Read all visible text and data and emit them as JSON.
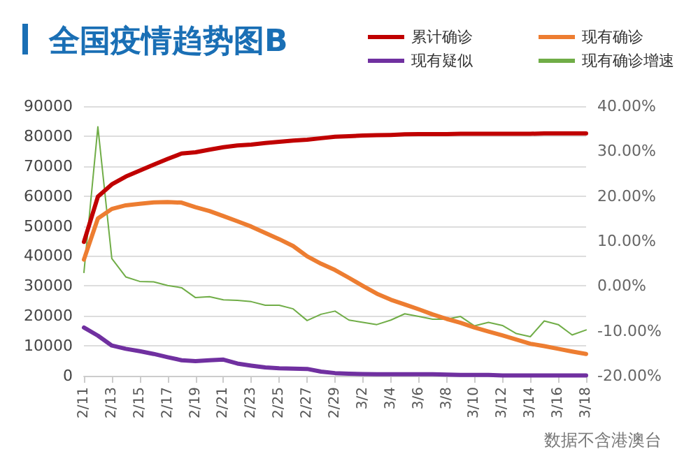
{
  "chart_data": {
    "type": "line",
    "title": "全国疫情趋势图B",
    "categories": [
      "2/11",
      null,
      "2/13",
      null,
      "2/15",
      null,
      "2/17",
      null,
      "2/19",
      null,
      "2/21",
      null,
      "2/23",
      null,
      "2/25",
      null,
      "2/27",
      null,
      "2/29",
      null,
      "3/2",
      null,
      "3/4",
      null,
      "3/6",
      null,
      "3/8",
      null,
      "3/10",
      null,
      "3/12",
      null,
      "3/14",
      null,
      "3/16",
      null,
      "3/18"
    ],
    "series": [
      {
        "name": "累计确诊",
        "color": "#c00000",
        "values": [
          44700,
          59800,
          63900,
          66500,
          68500,
          70500,
          72400,
          74200,
          74600,
          75500,
          76300,
          76900,
          77200,
          77700,
          78100,
          78500,
          78800,
          79300,
          79800,
          80000,
          80200,
          80300,
          80400,
          80600,
          80700,
          80700,
          80700,
          80800,
          80800,
          80800,
          80800,
          80800,
          80800,
          80900,
          80900,
          80900,
          80900
        ]
      },
      {
        "name": "现有确诊",
        "color": "#ed7d31",
        "values": [
          38800,
          52500,
          55700,
          56900,
          57400,
          57900,
          58000,
          57800,
          56300,
          55000,
          53300,
          51600,
          49800,
          47700,
          45600,
          43300,
          39900,
          37400,
          35300,
          32700,
          30000,
          27400,
          25400,
          23800,
          22200,
          20500,
          19000,
          17700,
          16100,
          14800,
          13500,
          12100,
          10700,
          9900,
          9000,
          8100,
          7300
        ]
      },
      {
        "name": "现有疑似",
        "color": "#7030a0",
        "values": [
          16100,
          13400,
          10100,
          9000,
          8200,
          7300,
          6200,
          5200,
          4900,
          5200,
          5400,
          4100,
          3400,
          2800,
          2500,
          2400,
          2300,
          1400,
          900,
          700,
          600,
          500,
          500,
          500,
          500,
          500,
          400,
          300,
          300,
          300,
          100,
          100,
          100,
          100,
          100,
          100,
          100
        ]
      },
      {
        "name": "现有确诊增速",
        "color": "#70ad47",
        "axis": "y2",
        "values": [
          3.0,
          35.4,
          6.1,
          2.0,
          1.0,
          0.9,
          0.1,
          -0.4,
          -2.6,
          -2.4,
          -3.1,
          -3.2,
          -3.5,
          -4.3,
          -4.3,
          -5.1,
          -7.7,
          -6.3,
          -5.6,
          -7.6,
          -8.1,
          -8.6,
          -7.6,
          -6.2,
          -6.8,
          -7.4,
          -7.4,
          -6.8,
          -8.9,
          -8.1,
          -8.8,
          -10.6,
          -11.3,
          -7.8,
          -8.6,
          -10.9,
          -9.8
        ]
      }
    ],
    "ylim": [
      0,
      90000
    ],
    "yticks": [
      0,
      10000,
      20000,
      30000,
      40000,
      50000,
      60000,
      70000,
      80000,
      90000
    ],
    "y2lim": [
      -20,
      40
    ],
    "y2ticks": [
      {
        "value": -20,
        "label": "-20.00%"
      },
      {
        "value": -10,
        "label": "-10.00%"
      },
      {
        "value": 0,
        "label": "0.00%"
      },
      {
        "value": 10,
        "label": "10.00%"
      },
      {
        "value": 20,
        "label": "20.00%"
      },
      {
        "value": 30,
        "label": "30.00%"
      },
      {
        "value": 40,
        "label": "40.00%"
      }
    ],
    "grid": "y",
    "legend": "top right",
    "marker": "none",
    "line_style": "solid",
    "annotations": [
      "数据不含港澳台"
    ]
  }
}
